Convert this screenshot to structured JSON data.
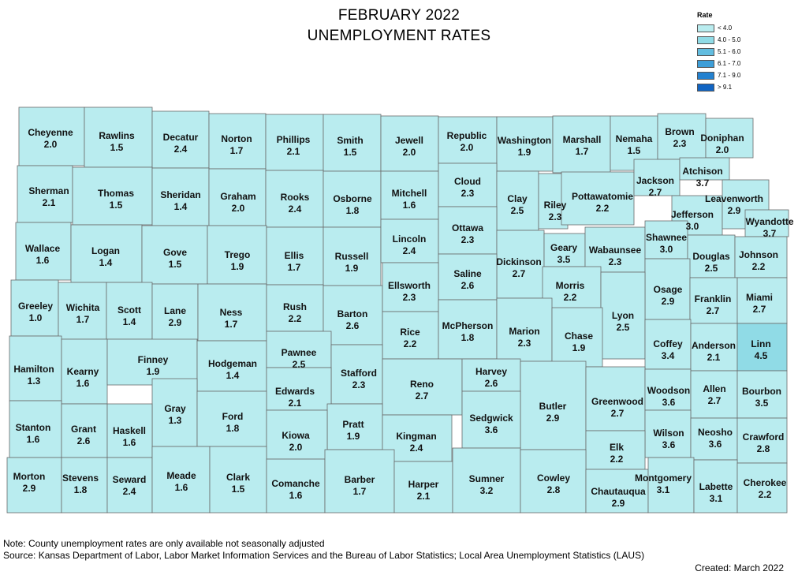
{
  "title_line1": "FEBRUARY 2022",
  "title_line2": "UNEMPLOYMENT RATES",
  "legend": {
    "title": "Rate",
    "items": [
      {
        "label": "< 4.0",
        "color": "#b9ecef"
      },
      {
        "label": "4.0 - 5.0",
        "color": "#90dbe6"
      },
      {
        "label": "5.1 - 6.0",
        "color": "#62bde0"
      },
      {
        "label": "6.1 - 7.0",
        "color": "#3d9ed8"
      },
      {
        "label": "7.1 - 9.0",
        "color": "#2381cf"
      },
      {
        "label": "> 9.1",
        "color": "#1064c3"
      }
    ]
  },
  "note": "Note: County unemployment rates are only available not seasonally adjusted",
  "source": "Source: Kansas Department of Labor, Labor Market Information Services and the Bureau of Labor Statistics; Local Area Unemployment Statistics (LAUS)",
  "created": "Created: March 2022",
  "counties": [
    {
      "name": "Cheyenne",
      "rate": "2.0"
    },
    {
      "name": "Rawlins",
      "rate": "1.5"
    },
    {
      "name": "Decatur",
      "rate": "2.4"
    },
    {
      "name": "Norton",
      "rate": "1.7"
    },
    {
      "name": "Phillips",
      "rate": "2.1"
    },
    {
      "name": "Smith",
      "rate": "1.5"
    },
    {
      "name": "Jewell",
      "rate": "2.0"
    },
    {
      "name": "Republic",
      "rate": "2.0"
    },
    {
      "name": "Washington",
      "rate": "1.9"
    },
    {
      "name": "Marshall",
      "rate": "1.7"
    },
    {
      "name": "Nemaha",
      "rate": "1.5"
    },
    {
      "name": "Brown",
      "rate": "2.3"
    },
    {
      "name": "Doniphan",
      "rate": "2.0"
    },
    {
      "name": "Sherman",
      "rate": "2.1"
    },
    {
      "name": "Thomas",
      "rate": "1.5"
    },
    {
      "name": "Sheridan",
      "rate": "1.4"
    },
    {
      "name": "Graham",
      "rate": "2.0"
    },
    {
      "name": "Rooks",
      "rate": "2.4"
    },
    {
      "name": "Osborne",
      "rate": "1.8"
    },
    {
      "name": "Mitchell",
      "rate": "1.6"
    },
    {
      "name": "Cloud",
      "rate": "2.3"
    },
    {
      "name": "Clay",
      "rate": "2.5"
    },
    {
      "name": "Riley",
      "rate": "2.3"
    },
    {
      "name": "Pottawatomie",
      "rate": "2.2"
    },
    {
      "name": "Jackson",
      "rate": "2.7"
    },
    {
      "name": "Atchison",
      "rate": "3.7"
    },
    {
      "name": "Jefferson",
      "rate": "3.0"
    },
    {
      "name": "Leavenworth",
      "rate": "2.9"
    },
    {
      "name": "Wyandotte",
      "rate": "3.7"
    },
    {
      "name": "Wallace",
      "rate": "1.6"
    },
    {
      "name": "Logan",
      "rate": "1.4"
    },
    {
      "name": "Gove",
      "rate": "1.5"
    },
    {
      "name": "Trego",
      "rate": "1.9"
    },
    {
      "name": "Ellis",
      "rate": "1.7"
    },
    {
      "name": "Russell",
      "rate": "1.9"
    },
    {
      "name": "Lincoln",
      "rate": "2.4"
    },
    {
      "name": "Ottawa",
      "rate": "2.3"
    },
    {
      "name": "Dickinson",
      "rate": "2.7"
    },
    {
      "name": "Geary",
      "rate": "3.5"
    },
    {
      "name": "Wabaunsee",
      "rate": "2.3"
    },
    {
      "name": "Shawnee",
      "rate": "3.0"
    },
    {
      "name": "Douglas",
      "rate": "2.5"
    },
    {
      "name": "Johnson",
      "rate": "2.2"
    },
    {
      "name": "Saline",
      "rate": "2.6"
    },
    {
      "name": "Greeley",
      "rate": "1.0"
    },
    {
      "name": "Wichita",
      "rate": "1.7"
    },
    {
      "name": "Scott",
      "rate": "1.4"
    },
    {
      "name": "Lane",
      "rate": "2.9"
    },
    {
      "name": "Ness",
      "rate": "1.7"
    },
    {
      "name": "Rush",
      "rate": "2.2"
    },
    {
      "name": "Barton",
      "rate": "2.6"
    },
    {
      "name": "Ellsworth",
      "rate": "2.3"
    },
    {
      "name": "Morris",
      "rate": "2.2"
    },
    {
      "name": "Osage",
      "rate": "2.9"
    },
    {
      "name": "Franklin",
      "rate": "2.7"
    },
    {
      "name": "Miami",
      "rate": "2.7"
    },
    {
      "name": "Lyon",
      "rate": "2.5"
    },
    {
      "name": "Rice",
      "rate": "2.2"
    },
    {
      "name": "McPherson",
      "rate": "1.8"
    },
    {
      "name": "Marion",
      "rate": "2.3"
    },
    {
      "name": "Chase",
      "rate": "1.9"
    },
    {
      "name": "Hamilton",
      "rate": "1.3"
    },
    {
      "name": "Kearny",
      "rate": "1.6"
    },
    {
      "name": "Finney",
      "rate": "1.9"
    },
    {
      "name": "Hodgeman",
      "rate": "1.4"
    },
    {
      "name": "Pawnee",
      "rate": "2.5"
    },
    {
      "name": "Coffey",
      "rate": "3.4"
    },
    {
      "name": "Anderson",
      "rate": "2.1"
    },
    {
      "name": "Linn",
      "rate": "4.5"
    },
    {
      "name": "Stafford",
      "rate": "2.3"
    },
    {
      "name": "Reno",
      "rate": "2.7"
    },
    {
      "name": "Harvey",
      "rate": "2.6"
    },
    {
      "name": "Edwards",
      "rate": "2.1"
    },
    {
      "name": "Gray",
      "rate": "1.3"
    },
    {
      "name": "Butler",
      "rate": "2.9"
    },
    {
      "name": "Greenwood",
      "rate": "2.7"
    },
    {
      "name": "Woodson",
      "rate": "3.6"
    },
    {
      "name": "Allen",
      "rate": "2.7"
    },
    {
      "name": "Bourbon",
      "rate": "3.5"
    },
    {
      "name": "Ford",
      "rate": "1.8"
    },
    {
      "name": "Sedgwick",
      "rate": "3.6"
    },
    {
      "name": "Stanton",
      "rate": "1.6"
    },
    {
      "name": "Grant",
      "rate": "2.6"
    },
    {
      "name": "Haskell",
      "rate": "1.6"
    },
    {
      "name": "Pratt",
      "rate": "1.9"
    },
    {
      "name": "Kiowa",
      "rate": "2.0"
    },
    {
      "name": "Kingman",
      "rate": "2.4"
    },
    {
      "name": "Wilson",
      "rate": "3.6"
    },
    {
      "name": "Neosho",
      "rate": "3.6"
    },
    {
      "name": "Crawford",
      "rate": "2.8"
    },
    {
      "name": "Elk",
      "rate": "2.2"
    },
    {
      "name": "Morton",
      "rate": "2.9"
    },
    {
      "name": "Stevens",
      "rate": "1.8"
    },
    {
      "name": "Seward",
      "rate": "2.4"
    },
    {
      "name": "Meade",
      "rate": "1.6"
    },
    {
      "name": "Clark",
      "rate": "1.5"
    },
    {
      "name": "Comanche",
      "rate": "1.6"
    },
    {
      "name": "Barber",
      "rate": "1.7"
    },
    {
      "name": "Harper",
      "rate": "2.1"
    },
    {
      "name": "Sumner",
      "rate": "3.2"
    },
    {
      "name": "Cowley",
      "rate": "2.8"
    },
    {
      "name": "Chautauqua",
      "rate": "2.9"
    },
    {
      "name": "Montgomery",
      "rate": "3.1"
    },
    {
      "name": "Labette",
      "rate": "3.1"
    },
    {
      "name": "Cherokee",
      "rate": "2.2"
    }
  ]
}
